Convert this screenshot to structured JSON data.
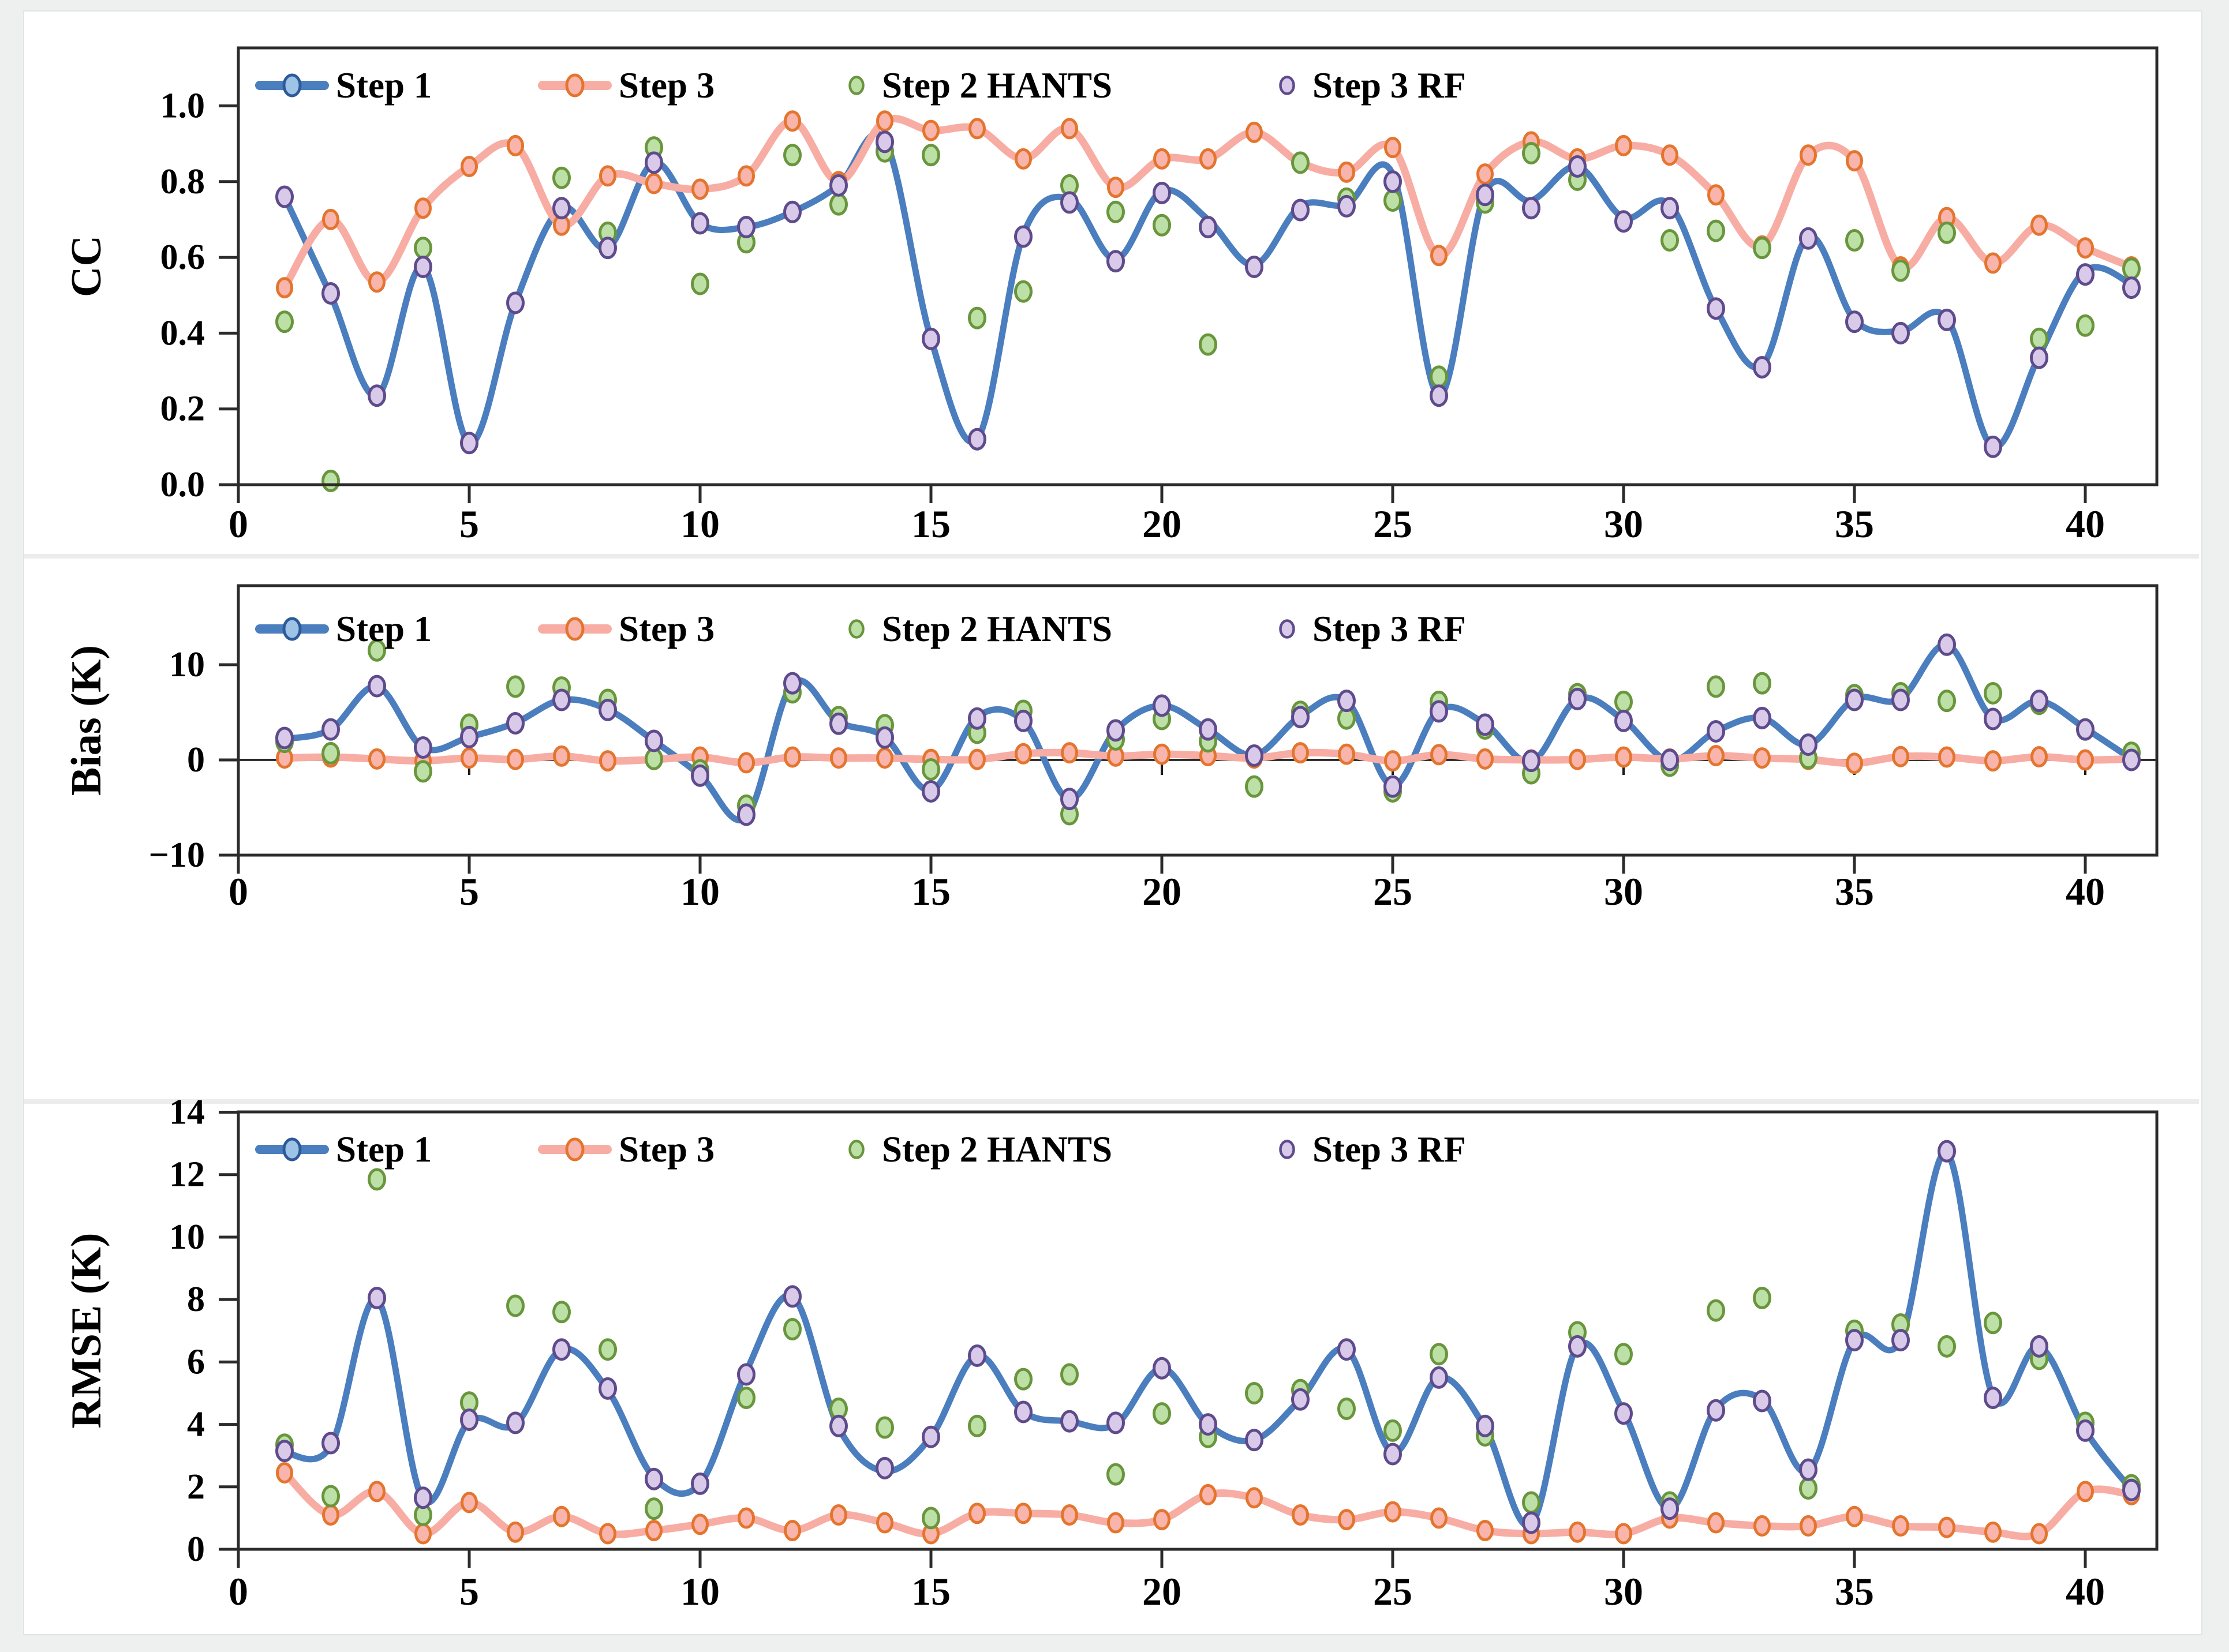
{
  "figure": {
    "background": "#eef0ef",
    "panel_background": "#ffffff",
    "frame_border": "#e2e4e3",
    "axis_color": "#2b2b2b",
    "zero_line_color": "#1a1a1a",
    "separator_color": "#ececec"
  },
  "series_style": [
    {
      "id": "step1",
      "label": "Step 1",
      "type": "smooth-line",
      "line_color": "#4A7EBE",
      "line_width": 11,
      "legend_marker_fill": "#9DC3E6",
      "legend_marker_edge": "#2E5A99"
    },
    {
      "id": "step3",
      "label": "Step 3",
      "type": "smooth-line-markers",
      "line_color": "#F7ADA3",
      "line_width": 13,
      "marker_fill": "#F9B5AB",
      "marker_edge": "#E4752E"
    },
    {
      "id": "hants",
      "label": "Step 2 HANTS",
      "type": "scatter",
      "marker_fill": "#BDE0A7",
      "marker_edge": "#69963D"
    },
    {
      "id": "rf",
      "label": "Step 3 RF",
      "type": "scatter",
      "marker_fill": "#DACAE9",
      "marker_edge": "#5D4B8C"
    }
  ],
  "chart_data": {
    "type": "line+scatter",
    "x": [
      1,
      2,
      3,
      4,
      5,
      6,
      7,
      8,
      9,
      10,
      11,
      12,
      13,
      14,
      15,
      16,
      17,
      18,
      19,
      20,
      21,
      22,
      23,
      24,
      25,
      26,
      27,
      28,
      29,
      30,
      31,
      32,
      33,
      34,
      35,
      36,
      37,
      38,
      39,
      40,
      41
    ],
    "x_ticks": [
      0,
      5,
      10,
      15,
      20,
      25,
      30,
      35,
      40
    ],
    "legend_position": "top-inside",
    "grid": false,
    "charts": [
      {
        "id": "cc",
        "ylabel": "CC",
        "ylim": [
          0,
          1.153
        ],
        "ytick_values": [
          0.0,
          0.2,
          0.4,
          0.6,
          0.8,
          1.0
        ],
        "ytick_labels": [
          "0.0",
          "0.2",
          "0.4",
          "0.6",
          "0.8",
          "1.0"
        ],
        "zero_line": false,
        "series": {
          "step1": [
            0.76,
            0.5,
            0.235,
            0.575,
            0.11,
            0.48,
            0.73,
            0.625,
            0.85,
            0.69,
            0.68,
            0.72,
            0.79,
            0.91,
            0.385,
            0.12,
            0.66,
            0.755,
            0.595,
            0.775,
            0.7,
            0.58,
            0.735,
            0.74,
            0.82,
            0.235,
            0.77,
            0.75,
            0.84,
            0.705,
            0.74,
            0.465,
            0.315,
            0.655,
            0.435,
            0.405,
            0.44,
            0.1,
            0.34,
            0.565,
            0.53
          ],
          "step3": [
            0.52,
            0.7,
            0.535,
            0.73,
            0.84,
            0.895,
            0.685,
            0.815,
            0.795,
            0.78,
            0.815,
            0.96,
            0.8,
            0.96,
            0.935,
            0.94,
            0.86,
            0.94,
            0.785,
            0.86,
            0.86,
            0.93,
            0.85,
            0.825,
            0.89,
            0.605,
            0.82,
            0.905,
            0.86,
            0.895,
            0.87,
            0.765,
            0.63,
            0.87,
            0.855,
            0.575,
            0.705,
            0.585,
            0.685,
            0.625,
            0.575
          ],
          "hants": [
            0.43,
            0.01,
            null,
            0.625,
            null,
            null,
            0.81,
            0.665,
            0.89,
            0.53,
            0.64,
            0.87,
            0.74,
            0.88,
            0.87,
            0.44,
            0.51,
            0.79,
            0.72,
            0.685,
            0.37,
            null,
            0.85,
            0.755,
            0.75,
            0.285,
            0.745,
            0.875,
            0.805,
            null,
            0.645,
            0.67,
            0.625,
            null,
            0.645,
            0.565,
            0.665,
            null,
            0.385,
            0.42,
            0.57
          ],
          "rf": [
            0.76,
            0.505,
            0.235,
            0.575,
            0.11,
            0.48,
            0.73,
            0.625,
            0.85,
            0.69,
            0.68,
            0.72,
            0.79,
            0.905,
            0.385,
            0.12,
            0.655,
            0.745,
            0.59,
            0.77,
            0.68,
            0.575,
            0.725,
            0.735,
            0.8,
            0.235,
            0.765,
            0.73,
            0.84,
            0.695,
            0.73,
            0.465,
            0.31,
            0.65,
            0.43,
            0.4,
            0.435,
            0.1,
            0.335,
            0.555,
            0.52
          ]
        }
      },
      {
        "id": "bias",
        "ylabel": "Bias (K)",
        "ylim": [
          -10,
          18.3
        ],
        "ytick_values": [
          -10,
          0,
          10
        ],
        "ytick_labels": [
          "−10",
          "0",
          "10"
        ],
        "zero_line": true,
        "series": {
          "step1": [
            2.2,
            3.2,
            7.7,
            1.3,
            2.4,
            3.9,
            6.3,
            5.3,
            2.0,
            -1.6,
            -6.0,
            8.0,
            4.0,
            2.4,
            -3.2,
            4.5,
            4.1,
            -4.1,
            3.1,
            5.7,
            3.2,
            0.5,
            4.6,
            6.2,
            -2.7,
            5.2,
            3.8,
            -0.2,
            6.4,
            4.2,
            -0.1,
            3.0,
            4.4,
            1.6,
            6.4,
            6.4,
            12.1,
            4.35,
            6.2,
            3.3,
            0.1
          ],
          "step3": [
            0.2,
            0.3,
            0.1,
            -0.1,
            0.2,
            0.05,
            0.4,
            -0.1,
            0.05,
            0.3,
            -0.3,
            0.3,
            0.2,
            0.2,
            0.05,
            0.05,
            0.65,
            0.75,
            0.4,
            0.6,
            0.45,
            0.2,
            0.75,
            0.6,
            -0.1,
            0.55,
            0.1,
            0.0,
            0.05,
            0.3,
            0.1,
            0.45,
            0.2,
            0.05,
            -0.35,
            0.35,
            0.3,
            -0.1,
            0.33,
            0.0,
            0.1
          ],
          "hants": [
            1.9,
            0.7,
            11.5,
            -1.2,
            3.7,
            7.7,
            7.6,
            6.3,
            0.1,
            -1.1,
            -4.8,
            7.1,
            4.5,
            3.65,
            -1.0,
            2.85,
            5.15,
            -5.7,
            2.15,
            4.3,
            1.95,
            -2.8,
            5.05,
            4.35,
            -3.3,
            6.1,
            3.3,
            -1.4,
            6.9,
            6.1,
            -0.6,
            7.7,
            8.05,
            0.2,
            6.8,
            7.0,
            6.2,
            7.0,
            5.9,
            null,
            0.75
          ],
          "rf": [
            2.3,
            3.2,
            7.75,
            1.3,
            2.4,
            3.85,
            6.3,
            5.25,
            2.0,
            -1.65,
            -5.75,
            8.05,
            3.8,
            2.35,
            -3.3,
            4.35,
            4.1,
            -4.1,
            3.1,
            5.7,
            3.2,
            0.45,
            4.5,
            6.2,
            -2.8,
            5.1,
            3.7,
            -0.1,
            6.4,
            4.1,
            0.0,
            3.0,
            4.4,
            1.6,
            6.3,
            6.3,
            12.1,
            4.3,
            6.2,
            3.2,
            0.0
          ]
        }
      },
      {
        "id": "rmse",
        "ylabel": "RMSE (K)",
        "ylim": [
          0,
          14.01
        ],
        "ytick_values": [
          0,
          2,
          4,
          6,
          8,
          10,
          12,
          14
        ],
        "ytick_labels": [
          "0",
          "2",
          "4",
          "6",
          "8",
          "10",
          "12",
          "14"
        ],
        "zero_line": false,
        "series": {
          "step1": [
            3.1,
            3.3,
            8.0,
            1.6,
            4.1,
            4.0,
            6.4,
            5.1,
            2.3,
            2.1,
            5.7,
            8.1,
            3.9,
            2.5,
            3.6,
            6.2,
            4.4,
            4.1,
            4.0,
            5.8,
            4.0,
            3.5,
            4.8,
            6.4,
            3.1,
            5.5,
            3.9,
            0.8,
            6.5,
            4.4,
            1.3,
            4.5,
            4.8,
            2.5,
            6.7,
            6.7,
            12.7,
            4.9,
            6.5,
            3.8,
            1.9
          ],
          "step3": [
            2.45,
            1.1,
            1.85,
            0.5,
            1.5,
            0.55,
            1.05,
            0.5,
            0.6,
            0.8,
            1.0,
            0.6,
            1.1,
            0.85,
            0.5,
            1.15,
            1.15,
            1.1,
            0.85,
            0.95,
            1.75,
            1.65,
            1.1,
            0.95,
            1.2,
            1.0,
            0.6,
            0.5,
            0.55,
            0.5,
            1.0,
            0.85,
            0.75,
            0.75,
            1.05,
            0.75,
            0.7,
            0.55,
            0.5,
            1.85,
            1.75
          ],
          "hants": [
            3.35,
            1.7,
            11.85,
            1.1,
            4.7,
            7.8,
            7.6,
            6.4,
            1.3,
            null,
            4.85,
            7.05,
            4.5,
            3.9,
            1.0,
            3.95,
            5.45,
            5.6,
            2.4,
            4.35,
            3.6,
            5.0,
            5.1,
            4.5,
            3.8,
            6.25,
            3.65,
            1.5,
            6.95,
            6.25,
            1.5,
            7.65,
            8.05,
            1.95,
            7.0,
            7.2,
            6.5,
            7.25,
            6.1,
            4.05,
            2.05
          ],
          "rf": [
            3.15,
            3.4,
            8.05,
            1.65,
            4.15,
            4.05,
            6.4,
            5.15,
            2.25,
            2.1,
            5.6,
            8.1,
            3.95,
            2.6,
            3.6,
            6.2,
            4.4,
            4.1,
            4.05,
            5.8,
            4.0,
            3.5,
            4.8,
            6.4,
            3.05,
            5.5,
            3.95,
            0.85,
            6.5,
            4.35,
            1.3,
            4.45,
            4.75,
            2.55,
            6.7,
            6.7,
            12.75,
            4.85,
            6.5,
            3.8,
            1.9
          ]
        }
      }
    ]
  }
}
